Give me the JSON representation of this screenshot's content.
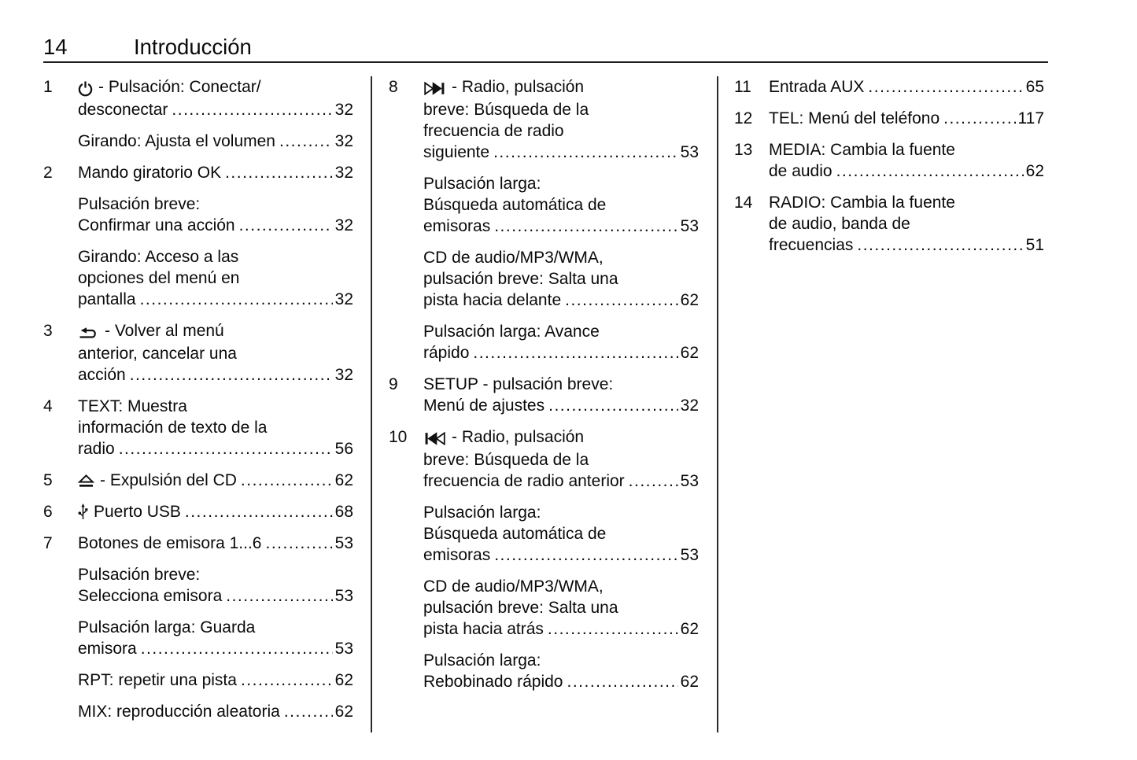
{
  "page": {
    "number": "14",
    "chapter": "Introducción"
  },
  "icon_colors": {
    "ink": "#111111",
    "paper": "#ffffff"
  },
  "columns": [
    {
      "entries": [
        {
          "num": "1",
          "icon": "power-icon",
          "lines": [
            "- Pulsación: Conectar/",
            "desconectar"
          ],
          "page": "32"
        },
        {
          "num": "",
          "lines": [
            "Girando: Ajusta el volumen"
          ],
          "page": "32"
        },
        {
          "num": "2",
          "lines": [
            "Mando giratorio OK"
          ],
          "page": "32"
        },
        {
          "num": "",
          "lines": [
            "Pulsación breve:",
            "Confirmar una acción"
          ],
          "page": "32"
        },
        {
          "num": "",
          "lines": [
            "Girando: Acceso a las",
            "opciones del menú en",
            "pantalla"
          ],
          "page": "32"
        },
        {
          "num": "3",
          "icon": "back-icon",
          "lines": [
            "- Volver al menú",
            "anterior, cancelar una",
            "acción"
          ],
          "page": "32"
        },
        {
          "num": "4",
          "lines": [
            "TEXT: Muestra",
            "información de texto de la",
            "radio"
          ],
          "page": "56"
        },
        {
          "num": "5",
          "icon": "eject-icon",
          "lines": [
            "- Expulsión del CD"
          ],
          "page": "62"
        },
        {
          "num": "6",
          "icon": "usb-icon",
          "lines": [
            "Puerto USB"
          ],
          "page": "68"
        },
        {
          "num": "7",
          "lines": [
            "Botones de emisora 1...6"
          ],
          "page": "53"
        },
        {
          "num": "",
          "lines": [
            "Pulsación breve:",
            "Selecciona emisora"
          ],
          "page": "53"
        },
        {
          "num": "",
          "lines": [
            "Pulsación larga: Guarda",
            "emisora"
          ],
          "page": "53"
        },
        {
          "num": "",
          "lines": [
            "RPT: repetir una pista"
          ],
          "page": "62"
        },
        {
          "num": "",
          "lines": [
            "MIX: reproducción aleatoria"
          ],
          "page": "62"
        }
      ]
    },
    {
      "entries": [
        {
          "num": "8",
          "icon": "next-track-icon",
          "lines": [
            "- Radio, pulsación",
            "breve: Búsqueda de la",
            "frecuencia de radio",
            "siguiente"
          ],
          "page": "53"
        },
        {
          "num": "",
          "lines": [
            "Pulsación larga:",
            "Búsqueda automática de",
            "emisoras"
          ],
          "page": "53"
        },
        {
          "num": "",
          "lines": [
            "CD de audio/MP3/WMA,",
            "pulsación breve: Salta una",
            "pista hacia delante"
          ],
          "page": "62"
        },
        {
          "num": "",
          "lines": [
            "Pulsación larga: Avance",
            "rápido"
          ],
          "page": "62"
        },
        {
          "num": "9",
          "lines": [
            "SETUP - pulsación breve:",
            "Menú de ajustes"
          ],
          "page": "32"
        },
        {
          "num": "10",
          "icon": "prev-track-icon",
          "lines": [
            "- Radio, pulsación",
            "breve: Búsqueda de la",
            "frecuencia de radio anterior"
          ],
          "page": "53"
        },
        {
          "num": "",
          "lines": [
            "Pulsación larga:",
            "Búsqueda automática de",
            "emisoras"
          ],
          "page": "53"
        },
        {
          "num": "",
          "lines": [
            "CD de audio/MP3/WMA,",
            "pulsación breve: Salta una",
            "pista hacia atrás"
          ],
          "page": "62"
        },
        {
          "num": "",
          "lines": [
            "Pulsación larga:",
            "Rebobinado rápido"
          ],
          "page": "62"
        }
      ]
    },
    {
      "entries": [
        {
          "num": "11",
          "lines": [
            "Entrada AUX"
          ],
          "page": "65"
        },
        {
          "num": "12",
          "lines": [
            "TEL: Menú del teléfono"
          ],
          "page": "117"
        },
        {
          "num": "13",
          "lines": [
            "MEDIA: Cambia la fuente",
            "de audio"
          ],
          "page": "62"
        },
        {
          "num": "14",
          "lines": [
            "RADIO: Cambia la fuente",
            "de audio, banda de",
            "frecuencias"
          ],
          "page": "51"
        }
      ]
    }
  ]
}
